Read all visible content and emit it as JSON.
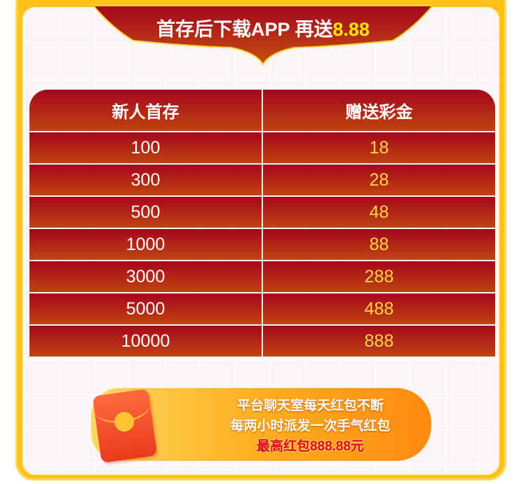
{
  "banner": {
    "title": "首存后下载APP 再送",
    "highlight": "8.88"
  },
  "table": {
    "headers": [
      "新人首存",
      "赠送彩金"
    ],
    "rows": [
      [
        "100",
        "18"
      ],
      [
        "300",
        "28"
      ],
      [
        "500",
        "48"
      ],
      [
        "1000",
        "88"
      ],
      [
        "3000",
        "288"
      ],
      [
        "5000",
        "488"
      ],
      [
        "10000",
        "888"
      ]
    ]
  },
  "promo": {
    "line1": "平台聊天室每天红包不断",
    "line2": "每两小时派发一次手气红包",
    "line3": "最高红包888.88元",
    "icon": "red-envelope-icon"
  },
  "colors": {
    "frame": "#ffc21a",
    "table_red": "#a4061d",
    "highlight_yellow": "#ffe800",
    "promo_orange": "#ffae1e"
  }
}
